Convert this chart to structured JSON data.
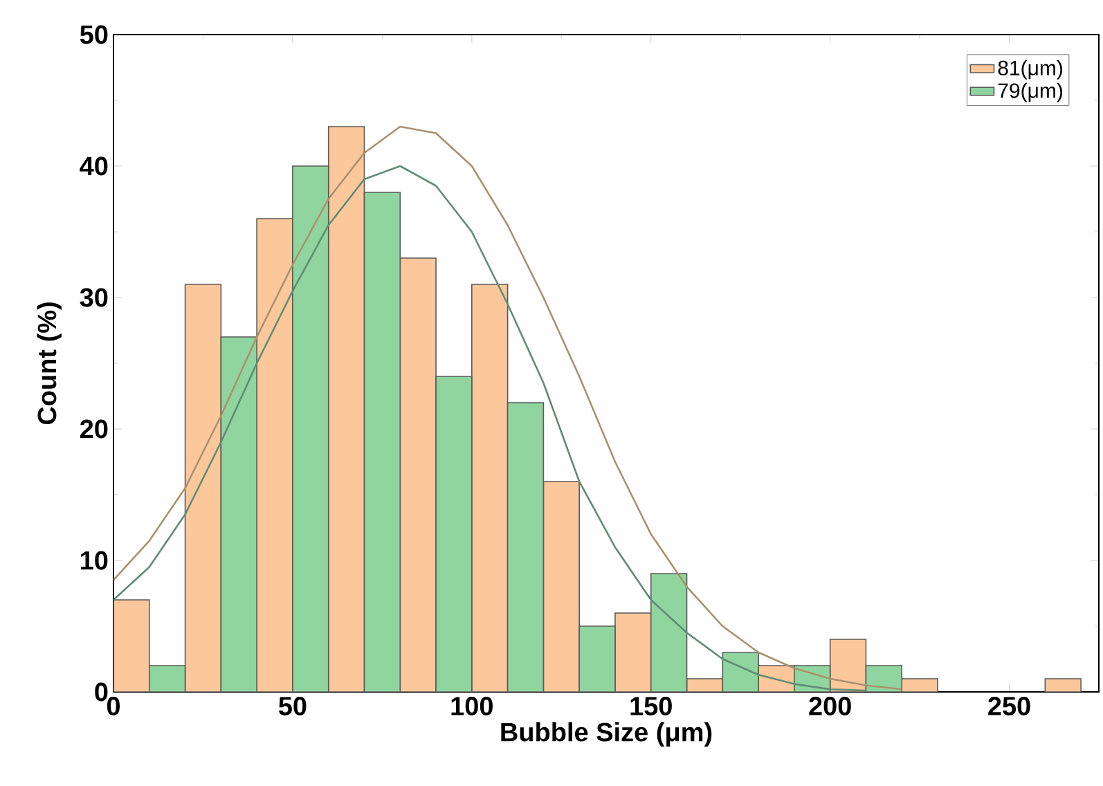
{
  "chart_data": {
    "type": "bar",
    "xlabel": "Bubble Size (μm)",
    "ylabel": "Count (%)",
    "xlim": [
      0,
      275
    ],
    "xticks": [
      0,
      50,
      100,
      150,
      200,
      250
    ],
    "ylim": [
      0,
      50
    ],
    "yticks": [
      0,
      10,
      20,
      30,
      40,
      50
    ],
    "legend": "top right",
    "series": [
      {
        "name": "81(μm)",
        "color": "#fcc79a",
        "x": [
          5,
          25,
          45,
          65,
          85,
          105,
          125,
          145,
          165,
          185,
          205,
          225,
          265
        ],
        "values": [
          7,
          31,
          36,
          43,
          33,
          31,
          16,
          6,
          1,
          2,
          4,
          1,
          1
        ]
      },
      {
        "name": "79(μm)",
        "color": "#90d59f",
        "x": [
          15,
          35,
          55,
          75,
          95,
          115,
          135,
          155,
          175,
          195,
          215
        ],
        "values": [
          2,
          27,
          40,
          38,
          24,
          22,
          5,
          9,
          3,
          2,
          2
        ]
      },
      {
        "type": "line",
        "color": "#a8926e",
        "x": [
          0,
          10,
          20,
          30,
          40,
          50,
          60,
          70,
          80,
          90,
          100,
          110,
          120,
          130,
          140,
          150,
          160,
          170,
          180,
          190,
          200,
          210,
          220
        ],
        "values": [
          8.5,
          11.5,
          15.5,
          21,
          27,
          32.5,
          37.5,
          41,
          43,
          42.5,
          40,
          35.5,
          30,
          24,
          17.5,
          12,
          8,
          5,
          3,
          1.8,
          1,
          0.5,
          0.2
        ]
      },
      {
        "type": "line",
        "color": "#5f8c74",
        "x": [
          0,
          10,
          20,
          30,
          40,
          50,
          60,
          70,
          80,
          90,
          100,
          110,
          120,
          130,
          140,
          150,
          160,
          170,
          180,
          190,
          200,
          210
        ],
        "values": [
          7,
          9.5,
          13.5,
          19,
          25,
          30.5,
          35.5,
          39,
          40,
          38.5,
          35,
          29.5,
          23.5,
          16,
          11,
          7,
          4.5,
          2.5,
          1.3,
          0.6,
          0.2,
          0.1
        ]
      }
    ]
  }
}
